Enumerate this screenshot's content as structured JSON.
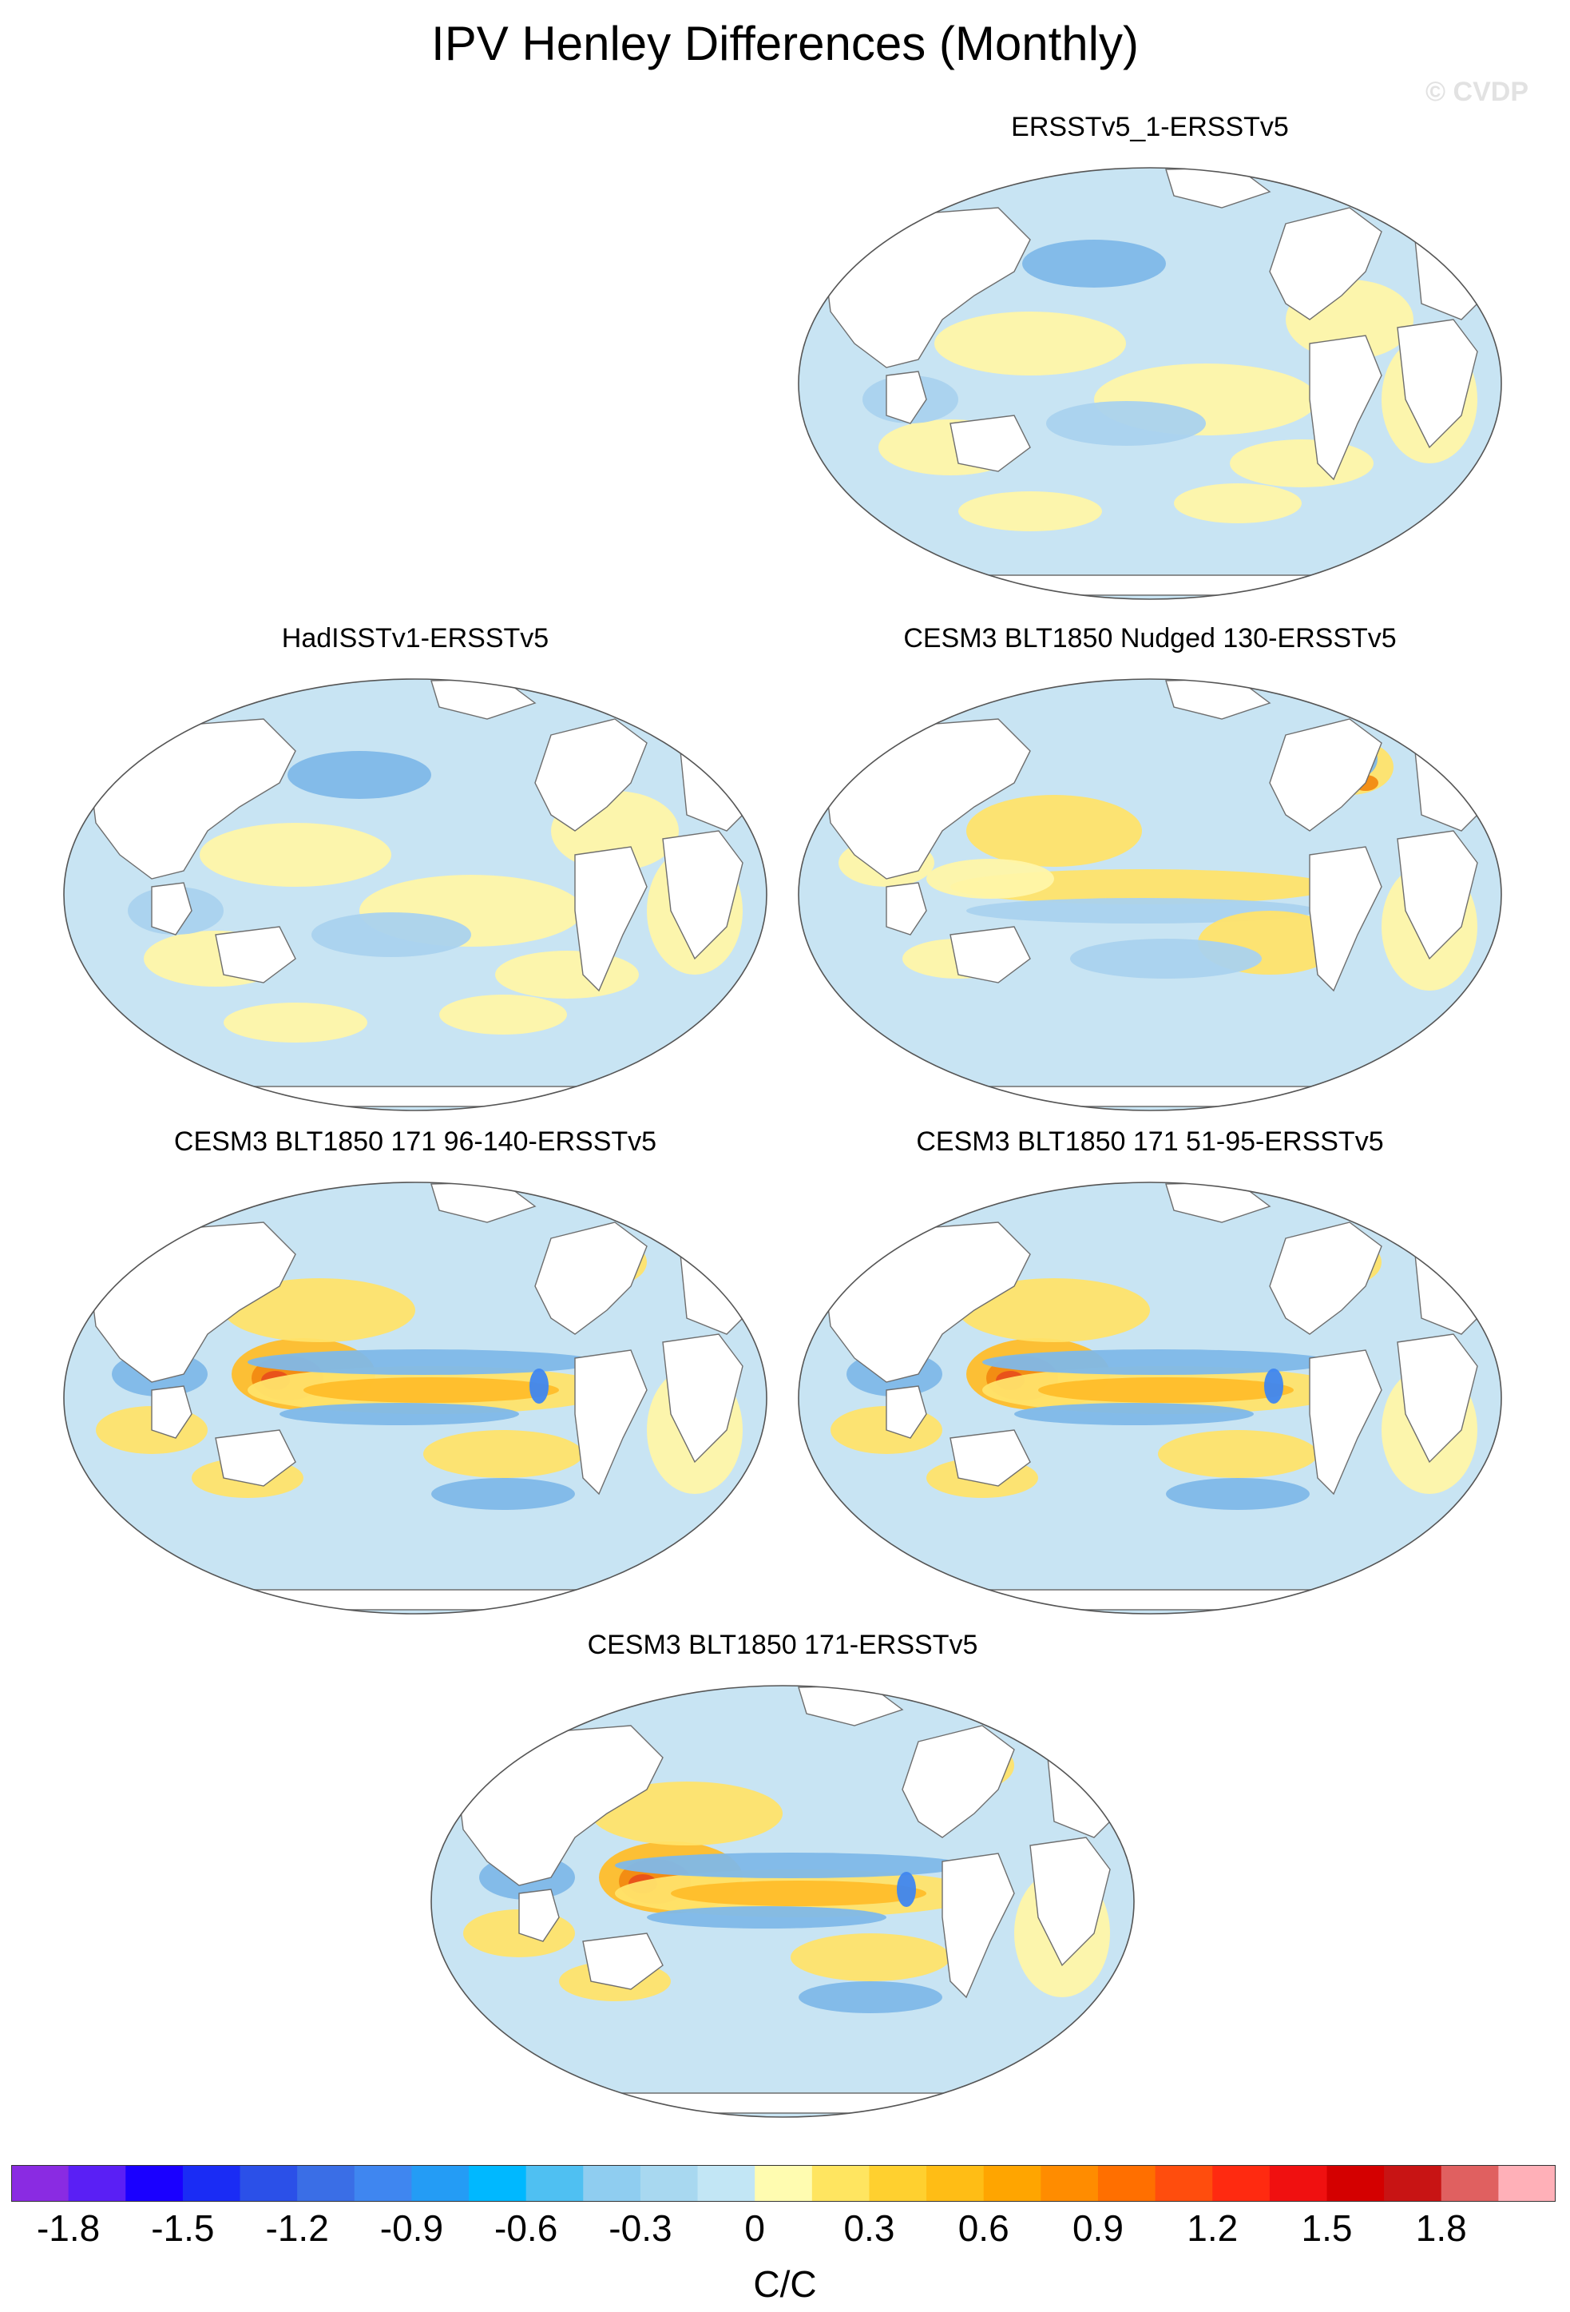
{
  "title": "IPV Henley Differences (Monthly)",
  "watermark": "© CVDP",
  "panels": [
    {
      "title": "ERSSTv5_1-ERSSTv5",
      "pattern": "low_amplitude_mixed"
    },
    {
      "title": "HadISSTv1-ERSSTv5",
      "pattern": "low_amplitude_mixed"
    },
    {
      "title": "CESM3 BLT1850 Nudged 130-ERSSTv5",
      "pattern": "equatorial_band"
    },
    {
      "title": "CESM3 BLT1850 171 96-140-ERSSTv5",
      "pattern": "strong_west_pacific_warm"
    },
    {
      "title": "CESM3 BLT1850 171 51-95-ERSSTv5",
      "pattern": "strong_west_pacific_warm"
    },
    {
      "title": "CESM3 BLT1850 171-ERSSTv5",
      "pattern": "strong_west_pacific_warm"
    }
  ],
  "colorbar": {
    "colors": [
      "#8a2be2",
      "#5a1ff5",
      "#1a00ff",
      "#1a2cf5",
      "#2b50e8",
      "#3a6ee6",
      "#3f86f0",
      "#249cf5",
      "#00b8ff",
      "#4fc0f2",
      "#8fcdf0",
      "#a8d8f0",
      "#c2e6f5",
      "#fffcb0",
      "#ffe560",
      "#ffd02f",
      "#ffbd15",
      "#ffa500",
      "#ff8c00",
      "#ff6f00",
      "#ff4d0d",
      "#ff2a10",
      "#f01010",
      "#d40000",
      "#c81414",
      "#e06060",
      "#ffb0b8"
    ],
    "ticks": [
      "-1.8",
      "-1.5",
      "-1.2",
      "-0.9",
      "-0.6",
      "-0.3",
      "0",
      "0.3",
      "0.6",
      "0.9",
      "1.2",
      "1.5",
      "1.8"
    ],
    "units": "C/C"
  }
}
